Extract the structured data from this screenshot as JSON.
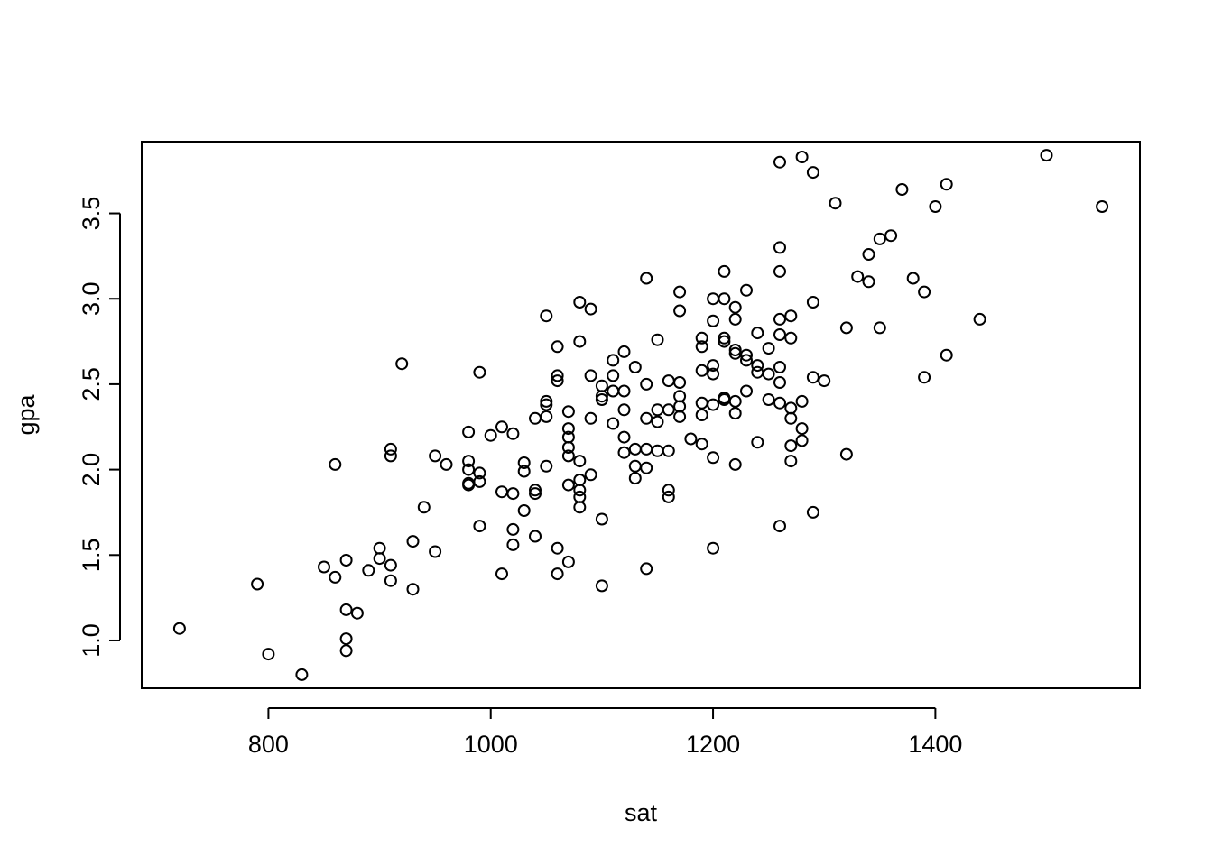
{
  "chart_data": {
    "type": "scatter",
    "xlabel": "sat",
    "ylabel": "gpa",
    "xlim": [
      686,
      1584
    ],
    "ylim": [
      0.72,
      3.92
    ],
    "xticks": [
      "800",
      "1000",
      "1200",
      "1400"
    ],
    "yticks": [
      "1.0",
      "1.5",
      "2.0",
      "2.5",
      "3.0",
      "3.5"
    ],
    "grid": false,
    "legend": "none",
    "marker": "open-circle",
    "color": "#000000",
    "points": [
      [
        720,
        1.07
      ],
      [
        790,
        1.33
      ],
      [
        800,
        0.92
      ],
      [
        830,
        0.8
      ],
      [
        850,
        1.43
      ],
      [
        860,
        1.37
      ],
      [
        860,
        2.03
      ],
      [
        870,
        1.47
      ],
      [
        870,
        1.18
      ],
      [
        870,
        1.01
      ],
      [
        870,
        0.94
      ],
      [
        880,
        1.16
      ],
      [
        890,
        1.41
      ],
      [
        900,
        1.48
      ],
      [
        900,
        1.54
      ],
      [
        910,
        1.44
      ],
      [
        910,
        1.35
      ],
      [
        910,
        2.12
      ],
      [
        910,
        2.08
      ],
      [
        920,
        2.62
      ],
      [
        930,
        1.58
      ],
      [
        930,
        1.3
      ],
      [
        940,
        1.78
      ],
      [
        950,
        1.52
      ],
      [
        950,
        2.08
      ],
      [
        960,
        2.03
      ],
      [
        980,
        2.22
      ],
      [
        980,
        2.05
      ],
      [
        980,
        2.0
      ],
      [
        980,
        1.91
      ],
      [
        980,
        1.92
      ],
      [
        990,
        1.98
      ],
      [
        990,
        1.93
      ],
      [
        990,
        1.67
      ],
      [
        990,
        2.57
      ],
      [
        1000,
        2.2
      ],
      [
        1010,
        2.25
      ],
      [
        1010,
        1.87
      ],
      [
        1010,
        1.39
      ],
      [
        1020,
        2.21
      ],
      [
        1020,
        1.86
      ],
      [
        1020,
        1.65
      ],
      [
        1020,
        1.56
      ],
      [
        1030,
        2.04
      ],
      [
        1030,
        1.99
      ],
      [
        1030,
        1.76
      ],
      [
        1040,
        2.3
      ],
      [
        1040,
        1.88
      ],
      [
        1040,
        1.86
      ],
      [
        1040,
        1.61
      ],
      [
        1050,
        2.9
      ],
      [
        1050,
        2.4
      ],
      [
        1050,
        2.38
      ],
      [
        1050,
        2.31
      ],
      [
        1050,
        2.02
      ],
      [
        1060,
        2.72
      ],
      [
        1060,
        2.55
      ],
      [
        1060,
        2.52
      ],
      [
        1060,
        1.54
      ],
      [
        1060,
        1.39
      ],
      [
        1070,
        2.34
      ],
      [
        1070,
        2.24
      ],
      [
        1070,
        2.19
      ],
      [
        1070,
        2.13
      ],
      [
        1070,
        2.08
      ],
      [
        1070,
        1.91
      ],
      [
        1070,
        1.46
      ],
      [
        1080,
        2.98
      ],
      [
        1080,
        2.75
      ],
      [
        1080,
        2.05
      ],
      [
        1080,
        1.94
      ],
      [
        1080,
        1.88
      ],
      [
        1080,
        1.84
      ],
      [
        1080,
        1.78
      ],
      [
        1090,
        2.94
      ],
      [
        1090,
        2.55
      ],
      [
        1090,
        2.3
      ],
      [
        1090,
        1.97
      ],
      [
        1100,
        2.49
      ],
      [
        1100,
        2.43
      ],
      [
        1100,
        2.41
      ],
      [
        1100,
        1.71
      ],
      [
        1100,
        1.32
      ],
      [
        1110,
        2.64
      ],
      [
        1110,
        2.55
      ],
      [
        1110,
        2.46
      ],
      [
        1110,
        2.27
      ],
      [
        1120,
        2.69
      ],
      [
        1120,
        2.46
      ],
      [
        1120,
        2.35
      ],
      [
        1120,
        2.19
      ],
      [
        1120,
        2.1
      ],
      [
        1130,
        2.6
      ],
      [
        1130,
        2.12
      ],
      [
        1130,
        2.02
      ],
      [
        1130,
        1.95
      ],
      [
        1140,
        3.12
      ],
      [
        1140,
        2.5
      ],
      [
        1140,
        2.3
      ],
      [
        1140,
        2.12
      ],
      [
        1140,
        2.01
      ],
      [
        1140,
        1.42
      ],
      [
        1150,
        2.76
      ],
      [
        1150,
        2.35
      ],
      [
        1150,
        2.28
      ],
      [
        1150,
        2.11
      ],
      [
        1160,
        2.52
      ],
      [
        1160,
        2.35
      ],
      [
        1160,
        2.11
      ],
      [
        1160,
        1.88
      ],
      [
        1160,
        1.84
      ],
      [
        1170,
        3.04
      ],
      [
        1170,
        2.93
      ],
      [
        1170,
        2.51
      ],
      [
        1170,
        2.43
      ],
      [
        1170,
        2.37
      ],
      [
        1170,
        2.31
      ],
      [
        1180,
        2.18
      ],
      [
        1190,
        2.77
      ],
      [
        1190,
        2.72
      ],
      [
        1190,
        2.58
      ],
      [
        1190,
        2.39
      ],
      [
        1190,
        2.32
      ],
      [
        1190,
        2.15
      ],
      [
        1200,
        3.0
      ],
      [
        1200,
        2.87
      ],
      [
        1200,
        2.61
      ],
      [
        1200,
        2.56
      ],
      [
        1200,
        2.38
      ],
      [
        1200,
        2.07
      ],
      [
        1200,
        1.54
      ],
      [
        1210,
        3.16
      ],
      [
        1210,
        3.0
      ],
      [
        1210,
        2.77
      ],
      [
        1210,
        2.75
      ],
      [
        1210,
        2.41
      ],
      [
        1210,
        2.42
      ],
      [
        1220,
        2.95
      ],
      [
        1220,
        2.88
      ],
      [
        1220,
        2.7
      ],
      [
        1220,
        2.68
      ],
      [
        1220,
        2.4
      ],
      [
        1220,
        2.33
      ],
      [
        1220,
        2.03
      ],
      [
        1230,
        3.05
      ],
      [
        1230,
        2.67
      ],
      [
        1230,
        2.64
      ],
      [
        1230,
        2.46
      ],
      [
        1240,
        2.8
      ],
      [
        1240,
        2.61
      ],
      [
        1240,
        2.57
      ],
      [
        1240,
        2.16
      ],
      [
        1250,
        2.71
      ],
      [
        1250,
        2.56
      ],
      [
        1250,
        2.41
      ],
      [
        1260,
        3.8
      ],
      [
        1260,
        3.3
      ],
      [
        1260,
        3.16
      ],
      [
        1260,
        2.88
      ],
      [
        1260,
        2.79
      ],
      [
        1260,
        2.6
      ],
      [
        1260,
        2.51
      ],
      [
        1260,
        2.39
      ],
      [
        1260,
        1.67
      ],
      [
        1270,
        2.9
      ],
      [
        1270,
        2.77
      ],
      [
        1270,
        2.36
      ],
      [
        1270,
        2.3
      ],
      [
        1270,
        2.14
      ],
      [
        1270,
        2.05
      ],
      [
        1280,
        3.83
      ],
      [
        1280,
        2.4
      ],
      [
        1280,
        2.24
      ],
      [
        1280,
        2.17
      ],
      [
        1290,
        3.74
      ],
      [
        1290,
        2.98
      ],
      [
        1290,
        2.54
      ],
      [
        1290,
        1.75
      ],
      [
        1300,
        2.52
      ],
      [
        1310,
        3.56
      ],
      [
        1320,
        2.83
      ],
      [
        1320,
        2.09
      ],
      [
        1330,
        3.13
      ],
      [
        1340,
        3.26
      ],
      [
        1340,
        3.1
      ],
      [
        1350,
        3.35
      ],
      [
        1350,
        2.83
      ],
      [
        1360,
        3.37
      ],
      [
        1370,
        3.64
      ],
      [
        1380,
        3.12
      ],
      [
        1390,
        3.04
      ],
      [
        1390,
        2.54
      ],
      [
        1400,
        3.54
      ],
      [
        1410,
        3.67
      ],
      [
        1410,
        2.67
      ],
      [
        1440,
        2.88
      ],
      [
        1500,
        3.84
      ],
      [
        1550,
        3.54
      ]
    ]
  }
}
